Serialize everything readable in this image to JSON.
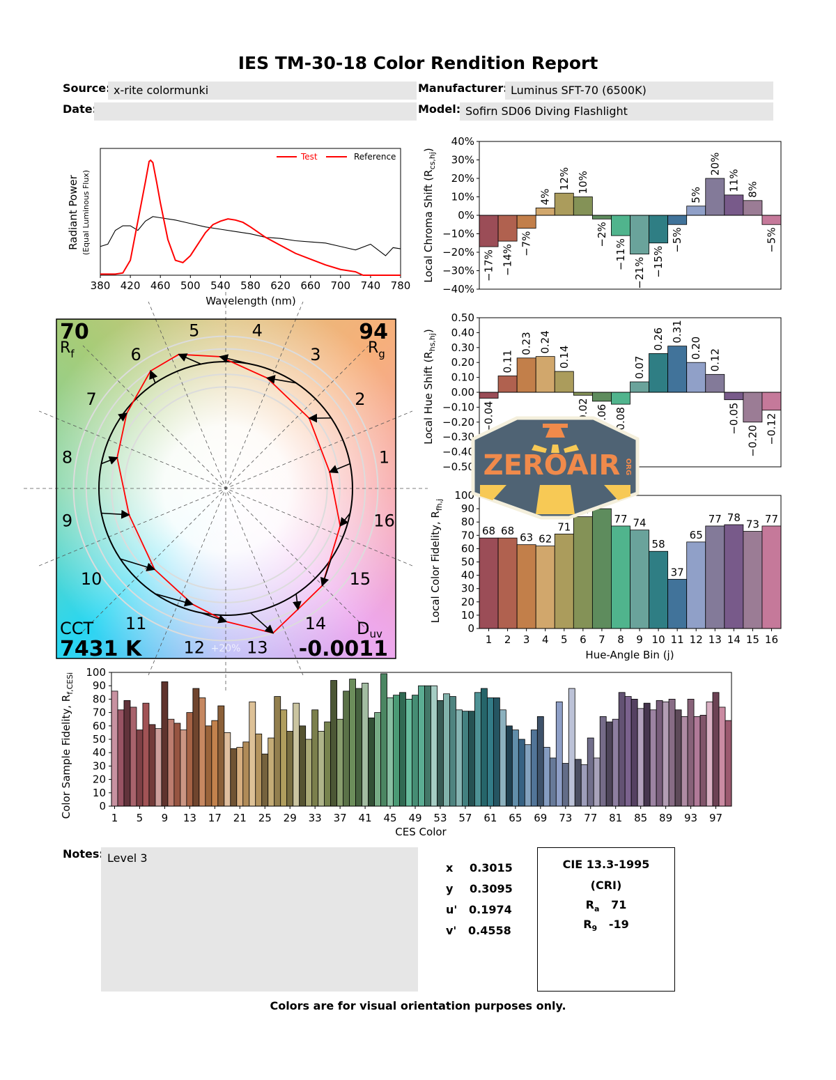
{
  "report": {
    "title": "IES TM-30-18 Color Rendition Report",
    "source_label": "Source:",
    "source_value": "x-rite colormunki",
    "date_label": "Date:",
    "date_value": "",
    "manufacturer_label": "Manufacturer:",
    "manufacturer_value": "Luminus SFT-70 (6500K)",
    "model_label": "Model:",
    "model_value": "Sofirn SD06 Diving Flashlight",
    "notes_label": "Notes:",
    "notes_value": "Level 3",
    "footer": "Colors are for visual orientation purposes only."
  },
  "chromaticity": {
    "x_label": "x",
    "x_value": "0.3015",
    "y_label": "y",
    "y_value": "0.3095",
    "u_label": "u'",
    "u_value": "0.1974",
    "v_label": "v'",
    "v_value": "0.4558"
  },
  "cri": {
    "title": "CIE 13.3-1995",
    "subtitle": "(CRI)",
    "ra_label": "R",
    "ra_sub": "a",
    "ra_value": "71",
    "r9_label": "R",
    "r9_sub": "9",
    "r9_value": "-19"
  },
  "logo": {
    "text": "ZEROAIR",
    "suffix": "ORG",
    "colors": {
      "body": "#4f6374",
      "text": "#f08a4b",
      "stripes": "#f7c955",
      "border": "#f4efdc"
    }
  },
  "vector_graphic": {
    "rf_value": "70",
    "rf_label": "R",
    "rf_sub": "f",
    "rg_value": "94",
    "rg_label": "R",
    "rg_sub": "g",
    "cct_label": "CCT",
    "cct_value": "7431 K",
    "duv_label": "D",
    "duv_sub": "uv",
    "duv_value": "-0.0011",
    "scale_label": "+20%",
    "bin_labels": [
      "1",
      "2",
      "3",
      "4",
      "5",
      "6",
      "7",
      "8",
      "9",
      "10",
      "11",
      "12",
      "13",
      "14",
      "15",
      "16"
    ],
    "test_color": "#ff0000",
    "reference_color": "#000000"
  },
  "bin_colors": [
    "#9b4d57",
    "#b0614f",
    "#c27f4a",
    "#d1a76c",
    "#ab9c5c",
    "#849257",
    "#5e8c5d",
    "#50b48d",
    "#6aa39b",
    "#2f7e84",
    "#41739a",
    "#90a0c8",
    "#837a99",
    "#785a8a",
    "#9b7c95",
    "#c5799a"
  ],
  "chart_data": [
    {
      "id": "spd",
      "type": "line",
      "xlabel": "Wavelength (nm)",
      "ylabel": "Radiant Power",
      "ylabel2": "(Equal Luminous Flux)",
      "xlim": [
        380,
        780
      ],
      "ylim": [
        0,
        1.1
      ],
      "xticks": [
        "380",
        "420",
        "460",
        "500",
        "540",
        "580",
        "620",
        "660",
        "700",
        "740",
        "780"
      ],
      "legend_position": "top-right",
      "series": [
        {
          "name": "Test",
          "color": "#ff0000",
          "x": [
            380,
            400,
            410,
            420,
            430,
            440,
            445,
            447,
            450,
            455,
            460,
            470,
            480,
            490,
            500,
            510,
            520,
            530,
            540,
            550,
            560,
            570,
            580,
            600,
            620,
            640,
            660,
            680,
            700,
            720,
            730,
            780
          ],
          "y": [
            0.01,
            0.01,
            0.02,
            0.13,
            0.47,
            0.81,
            0.99,
            1.0,
            0.98,
            0.81,
            0.63,
            0.31,
            0.13,
            0.11,
            0.17,
            0.27,
            0.37,
            0.44,
            0.47,
            0.49,
            0.48,
            0.46,
            0.42,
            0.33,
            0.26,
            0.19,
            0.14,
            0.09,
            0.05,
            0.03,
            0.0,
            0.0
          ]
        },
        {
          "name": "Reference",
          "color": "#000000",
          "x": [
            380,
            390,
            400,
            410,
            420,
            430,
            440,
            450,
            460,
            470,
            480,
            500,
            520,
            540,
            560,
            580,
            600,
            620,
            640,
            660,
            680,
            700,
            720,
            740,
            760,
            770,
            780
          ],
          "y": [
            0.25,
            0.27,
            0.39,
            0.43,
            0.43,
            0.39,
            0.47,
            0.51,
            0.5,
            0.49,
            0.48,
            0.45,
            0.42,
            0.4,
            0.38,
            0.36,
            0.33,
            0.32,
            0.3,
            0.29,
            0.28,
            0.25,
            0.22,
            0.27,
            0.17,
            0.24,
            0.23
          ]
        }
      ]
    },
    {
      "id": "chroma",
      "type": "bar",
      "ylabel": {
        "main": "Local Chroma Shift (R",
        "sub": "cs,hj",
        "end": ")"
      },
      "ylim": [
        -40,
        40
      ],
      "yticks": [
        "40%",
        "30%",
        "20%",
        "10%",
        "0%",
        "−10%",
        "−20%",
        "−30%",
        "−40%"
      ],
      "categories": [
        "1",
        "2",
        "3",
        "4",
        "5",
        "6",
        "7",
        "8",
        "9",
        "10",
        "11",
        "12",
        "13",
        "14",
        "15",
        "16"
      ],
      "values": [
        -17,
        -14,
        -7,
        4,
        12,
        10,
        -2,
        -11,
        -21,
        -15,
        -5,
        5,
        20,
        11,
        8,
        -5
      ],
      "labels": [
        "−17%",
        "−14%",
        "−7%",
        "4%",
        "12%",
        "10%",
        "−2%",
        "−11%",
        "−21%",
        "−15%",
        "−5%",
        "5%",
        "20%",
        "11%",
        "8%",
        "−5%"
      ]
    },
    {
      "id": "hue",
      "type": "bar",
      "ylabel": {
        "main": "Local Hue Shift (R",
        "sub": "hs,hj",
        "end": ")"
      },
      "ylim": [
        -0.5,
        0.5
      ],
      "yticks": [
        "0.50",
        "0.40",
        "0.30",
        "0.20",
        "0.10",
        "0.00",
        "−0.10",
        "−0.20",
        "−0.30",
        "−0.40",
        "−0.50"
      ],
      "categories": [
        "1",
        "2",
        "3",
        "4",
        "5",
        "6",
        "7",
        "8",
        "9",
        "10",
        "11",
        "12",
        "13",
        "14",
        "15",
        "16"
      ],
      "values": [
        -0.04,
        0.11,
        0.23,
        0.24,
        0.14,
        -0.02,
        -0.06,
        -0.08,
        0.07,
        0.26,
        0.31,
        0.2,
        0.12,
        -0.05,
        -0.2,
        -0.12
      ],
      "labels": [
        "−0.04",
        "0.11",
        "0.23",
        "0.24",
        "0.14",
        "−0.02",
        "−0.06",
        "−0.08",
        "0.07",
        "0.26",
        "0.31",
        "0.20",
        "0.12",
        "−0.05",
        "−0.20",
        "−0.12"
      ]
    },
    {
      "id": "fidelity",
      "type": "bar",
      "xlabel": "Hue-Angle Bin (j)",
      "ylabel": {
        "main": "Local Color Fidelity, R",
        "sub": "fh,j",
        "end": ""
      },
      "ylim": [
        0,
        100
      ],
      "yticks": [
        "100",
        "90",
        "80",
        "70",
        "60",
        "50",
        "40",
        "30",
        "20",
        "10",
        "0"
      ],
      "categories": [
        "1",
        "2",
        "3",
        "4",
        "5",
        "6",
        "7",
        "8",
        "9",
        "10",
        "11",
        "12",
        "13",
        "14",
        "15",
        "16"
      ],
      "values": [
        68,
        68,
        63,
        62,
        71,
        84,
        90,
        77,
        74,
        58,
        37,
        65,
        77,
        78,
        73,
        77
      ],
      "labels": [
        "68",
        "68",
        "63",
        "62",
        "71",
        "84",
        "90",
        "77",
        "74",
        "58",
        "37",
        "65",
        "77",
        "78",
        "73",
        "77"
      ]
    },
    {
      "id": "ces",
      "type": "bar",
      "xlabel": "CES Color",
      "ylabel": {
        "main": "Color Sample Fidelity, R",
        "sub": "f,CESi",
        "end": ""
      },
      "ylim": [
        0,
        100
      ],
      "yticks": [
        "100",
        "90",
        "80",
        "70",
        "60",
        "50",
        "40",
        "30",
        "20",
        "10",
        "0"
      ],
      "xticks": [
        "1",
        "5",
        "9",
        "13",
        "17",
        "21",
        "25",
        "29",
        "33",
        "37",
        "41",
        "45",
        "49",
        "53",
        "57",
        "61",
        "65",
        "69",
        "73",
        "77",
        "81",
        "85",
        "89",
        "93",
        "97"
      ],
      "values": [
        86,
        72,
        79,
        74,
        57,
        77,
        61,
        58,
        93,
        65,
        62,
        57,
        70,
        88,
        81,
        60,
        64,
        75,
        55,
        43,
        44,
        48,
        78,
        54,
        39,
        51,
        82,
        72,
        56,
        77,
        60,
        50,
        72,
        56,
        63,
        94,
        65,
        86,
        95,
        88,
        92,
        66,
        70,
        99,
        81,
        83,
        85,
        80,
        83,
        90,
        90,
        90,
        79,
        84,
        82,
        72,
        71,
        71,
        85,
        88,
        81,
        81,
        72,
        60,
        57,
        50,
        46,
        57,
        67,
        44,
        36,
        78,
        32,
        88,
        35,
        31,
        51,
        36,
        67,
        63,
        65,
        85,
        82,
        80,
        73,
        77,
        72,
        79,
        78,
        80,
        72,
        67,
        80,
        67,
        68,
        78,
        85,
        74,
        64
      ]
    }
  ]
}
